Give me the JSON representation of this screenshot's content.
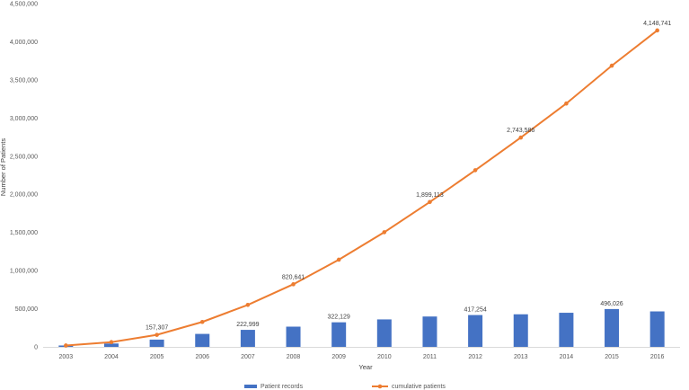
{
  "chart_data": {
    "type": "bar",
    "title": "",
    "xlabel": "Year",
    "ylabel": "Number of Patients",
    "ylim": [
      0,
      4500000
    ],
    "yticks": [
      0,
      500000,
      1000000,
      1500000,
      2000000,
      2500000,
      3000000,
      3500000,
      4000000,
      4500000
    ],
    "ytick_labels": [
      "0",
      "500,000",
      "1,000,000",
      "1,500,000",
      "2,000,000",
      "2,500,000",
      "3,000,000",
      "3,500,000",
      "4,000,000",
      "4,500,000"
    ],
    "grid": false,
    "legend_position": "bottom",
    "categories": [
      "2003",
      "2004",
      "2005",
      "2006",
      "2007",
      "2008",
      "2009",
      "2010",
      "2011",
      "2012",
      "2013",
      "2014",
      "2015",
      "2016"
    ],
    "series": [
      {
        "name": "Patient records",
        "type": "bar",
        "color": "#4472C4",
        "values": [
          18000,
          44000,
          95000,
          170000,
          222999,
          265000,
          322129,
          360000,
          398000,
          417254,
          427000,
          447000,
          496026,
          465000
        ],
        "labels": [
          "",
          "",
          "",
          "",
          "222,999",
          "",
          "322,129",
          "",
          "",
          "417,254",
          "",
          "",
          "496,026",
          ""
        ]
      },
      {
        "name": "cumulative patients",
        "type": "line",
        "color": "#ED7D31",
        "values": [
          18000,
          62000,
          157307,
          327000,
          550000,
          820641,
          1143000,
          1503000,
          1899113,
          2316000,
          2743586,
          3190000,
          3686000,
          4148741
        ],
        "labels": [
          "",
          "",
          "157,307",
          "",
          "",
          "820,641",
          "",
          "",
          "1,899,113",
          "",
          "2,743,586",
          "",
          "",
          "4,148,741"
        ]
      }
    ]
  }
}
